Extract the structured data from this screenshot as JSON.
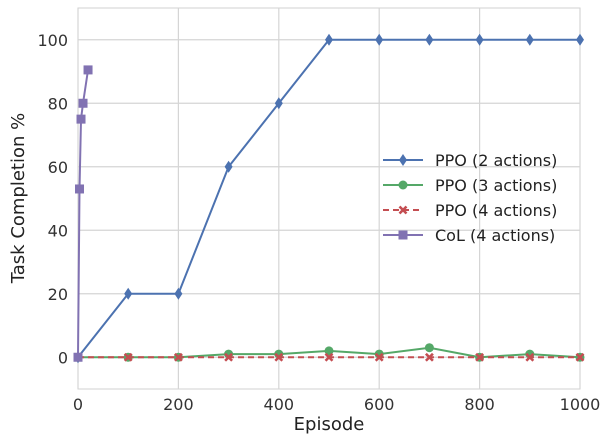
{
  "chart_data": {
    "type": "line",
    "xlabel": "Episode",
    "ylabel": "Task Completion %",
    "xlim": [
      0,
      1000
    ],
    "ylim": [
      -10,
      110
    ],
    "xticks": [
      0,
      200,
      400,
      600,
      800,
      1000
    ],
    "yticks": [
      0,
      20,
      40,
      60,
      80,
      100
    ],
    "grid": true,
    "legend_position": "center-right",
    "series": [
      {
        "name": "PPO (2 actions)",
        "color": "#4c72b0",
        "marker": "diamond",
        "linestyle": "solid",
        "x": [
          0,
          100,
          200,
          300,
          400,
          500,
          600,
          700,
          800,
          900,
          1000
        ],
        "y": [
          0,
          20,
          20,
          60,
          80,
          100,
          100,
          100,
          100,
          100,
          100
        ]
      },
      {
        "name": "PPO (3 actions)",
        "color": "#55a868",
        "marker": "circle",
        "linestyle": "solid",
        "x": [
          0,
          100,
          200,
          300,
          400,
          500,
          600,
          700,
          800,
          900,
          1000
        ],
        "y": [
          0,
          0,
          0,
          1,
          1,
          2,
          1,
          3,
          0,
          1,
          0
        ]
      },
      {
        "name": "PPO (4 actions)",
        "color": "#c44e52",
        "marker": "x",
        "linestyle": "dashed",
        "x": [
          0,
          100,
          200,
          300,
          400,
          500,
          600,
          700,
          800,
          900,
          1000
        ],
        "y": [
          0,
          0,
          0,
          0,
          0,
          0,
          0,
          0,
          0,
          0,
          0
        ]
      },
      {
        "name": "CoL (4 actions)",
        "color": "#8172b2",
        "marker": "square",
        "linestyle": "solid",
        "x": [
          0,
          3,
          6,
          10,
          20
        ],
        "y": [
          0,
          53,
          75,
          80,
          90.5
        ]
      }
    ]
  }
}
